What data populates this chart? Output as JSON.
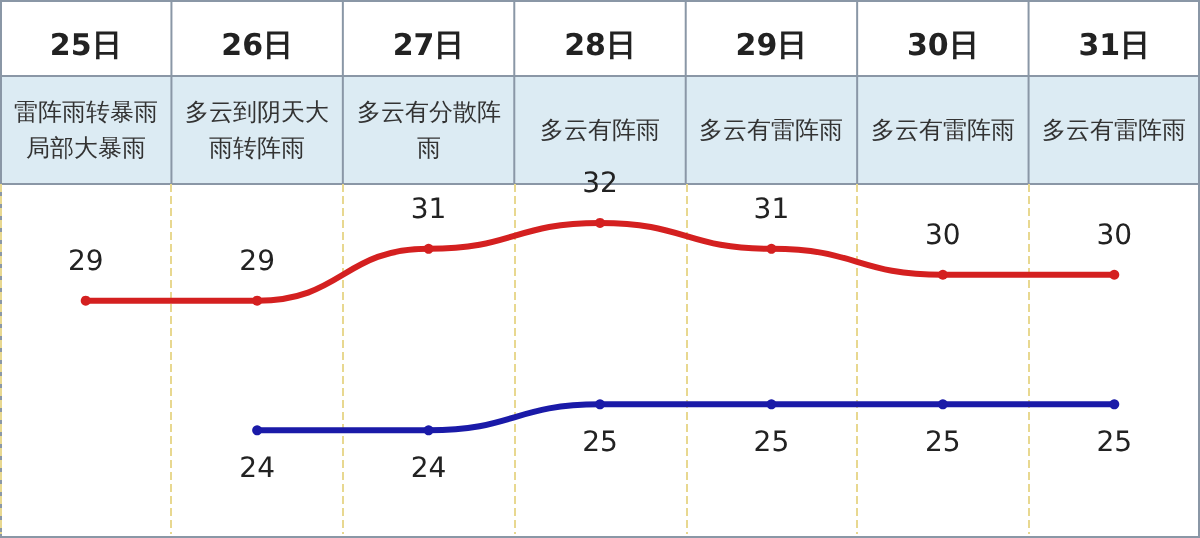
{
  "chart_data": {
    "type": "line",
    "categories": [
      "25日",
      "26日",
      "27日",
      "28日",
      "29日",
      "30日",
      "31日"
    ],
    "annotations": [
      "雷阵雨转暴雨局部大暴雨",
      "多云到阴天大雨转阵雨",
      "多云有分散阵雨",
      "多云有阵雨",
      "多云有雷阵雨",
      "多云有雷阵雨",
      "多云有雷阵雨"
    ],
    "series": [
      {
        "color": "#d42020",
        "values": [
          29,
          29,
          31,
          32,
          31,
          30,
          30
        ]
      },
      {
        "color": "#1a1aa8",
        "values": [
          null,
          24,
          24,
          25,
          25,
          25,
          25
        ]
      }
    ],
    "ylim": [
      20,
      33.5
    ],
    "data_labels": true,
    "marker": "circle",
    "line_style": "solid",
    "tick_labels": "x",
    "grid": "x"
  }
}
